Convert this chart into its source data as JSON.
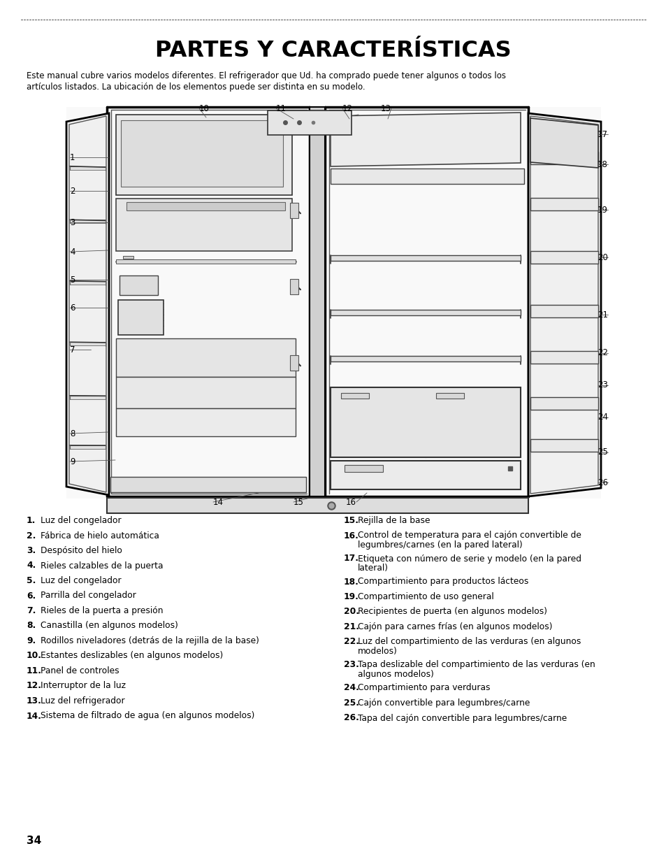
{
  "title": "PARTES Y CARACTERÍSTICAS",
  "description_line1": "Este manual cubre varios modelos diferentes. El refrigerador que Ud. ha comprado puede tener algunos o todos los",
  "description_line2": "artículos listados. La ubicación de los elementos puede ser distinta en su modelo.",
  "left_items": [
    {
      "num": "1.",
      "text": "Luz del congelador",
      "extra": ""
    },
    {
      "num": "2.",
      "text": "Fábrica de hielo automática",
      "extra": ""
    },
    {
      "num": "3.",
      "text": "Despósito del hielo",
      "extra": ""
    },
    {
      "num": "4.",
      "text": "Rieles calzables de la puerta",
      "extra": ""
    },
    {
      "num": "5.",
      "text": "Luz del congelador",
      "extra": ""
    },
    {
      "num": "6.",
      "text": "Parrilla del congelador",
      "extra": ""
    },
    {
      "num": "7.",
      "text": "Rieles de la puerta a presión",
      "extra": ""
    },
    {
      "num": "8.",
      "text": "Canastilla (en algunos modelos)",
      "extra": ""
    },
    {
      "num": "9.",
      "text": "Rodillos niveladores (detrás de la rejilla de la base)",
      "extra": ""
    },
    {
      "num": "10.",
      "text": "Estantes deslizables (en algunos modelos)",
      "extra": ""
    },
    {
      "num": "11.",
      "text": "Panel de controles",
      "extra": ""
    },
    {
      "num": "12.",
      "text": "Interruptor de la luz",
      "extra": ""
    },
    {
      "num": "13.",
      "text": "Luz del refrigerador",
      "extra": ""
    },
    {
      "num": "14.",
      "text": "Sistema de filtrado de agua (en algunos modelos)",
      "extra": ""
    }
  ],
  "right_items": [
    {
      "num": "15.",
      "text": "Rejilla de la base",
      "extra": ""
    },
    {
      "num": "16.",
      "text": "Control de temperatura para el cajón convertible de",
      "extra": "legumbres/carnes (en la pared lateral)"
    },
    {
      "num": "17.",
      "text": "Etiqueta con número de serie y modelo (en la pared",
      "extra": "lateral)"
    },
    {
      "num": "18.",
      "text": "Compartimiento para productos lácteos",
      "extra": ""
    },
    {
      "num": "19.",
      "text": "Compartimiento de uso general",
      "extra": ""
    },
    {
      "num": "20.",
      "text": "Recipientes de puerta (en algunos modelos)",
      "extra": ""
    },
    {
      "num": "21.",
      "text": "Cajón para carnes frías (en algunos modelos)",
      "extra": ""
    },
    {
      "num": "22.",
      "text": "Luz del compartimiento de las verduras (en algunos",
      "extra": "modelos)"
    },
    {
      "num": "23.",
      "text": "Tapa deslizable del compartimiento de las verduras (en",
      "extra": "algunos modelos)"
    },
    {
      "num": "24.",
      "text": "Compartimiento para verduras",
      "extra": ""
    },
    {
      "num": "25.",
      "text": "Cajón convertible para legumbres/carne",
      "extra": ""
    },
    {
      "num": "26.",
      "text": "Tapa del cajón convertible para legumbres/carne",
      "extra": ""
    }
  ],
  "page_number": "34",
  "bg_color": "#ffffff",
  "text_color": "#000000"
}
